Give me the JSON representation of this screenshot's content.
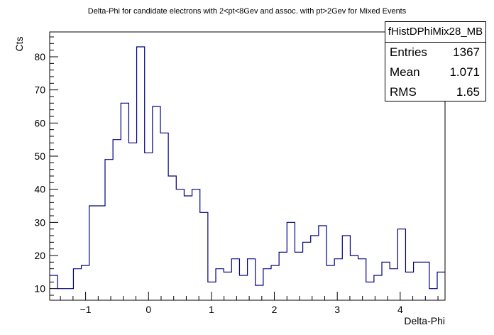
{
  "chart_data": {
    "type": "histogram",
    "title": "Delta-Phi for candidate electrons with 2<pt<8Gev and assoc. with pt>2Gev for Mixed Events",
    "xlabel": "Delta-Phi",
    "ylabel": "Cts",
    "xlim": [
      -1.5708,
      4.7124
    ],
    "ylim": [
      6.5,
      87.5
    ],
    "x_ticks": [
      -1,
      0,
      1,
      2,
      3,
      4
    ],
    "y_ticks": [
      10,
      20,
      30,
      40,
      50,
      60,
      70,
      80
    ],
    "bin_start": -1.5708,
    "bin_width": 0.1257,
    "values": [
      14,
      10,
      10,
      16,
      17,
      35,
      35,
      49,
      55,
      66,
      54,
      83,
      51,
      65,
      57,
      44,
      40,
      38,
      40,
      33,
      12,
      16,
      15,
      19,
      14,
      19,
      11,
      16,
      17,
      21,
      30,
      21,
      24,
      26,
      29,
      17,
      19,
      26,
      20,
      19,
      12,
      14,
      18,
      16,
      28,
      15,
      18,
      18,
      10,
      15
    ],
    "line_color": "#000080",
    "grid": false,
    "stats_box": {
      "name": "fHistDPhiMix28_MB",
      "rows": [
        {
          "label": "Entries",
          "value": "1367"
        },
        {
          "label": "Mean",
          "value": "1.071"
        },
        {
          "label": "RMS",
          "value": "1.65"
        }
      ]
    }
  }
}
